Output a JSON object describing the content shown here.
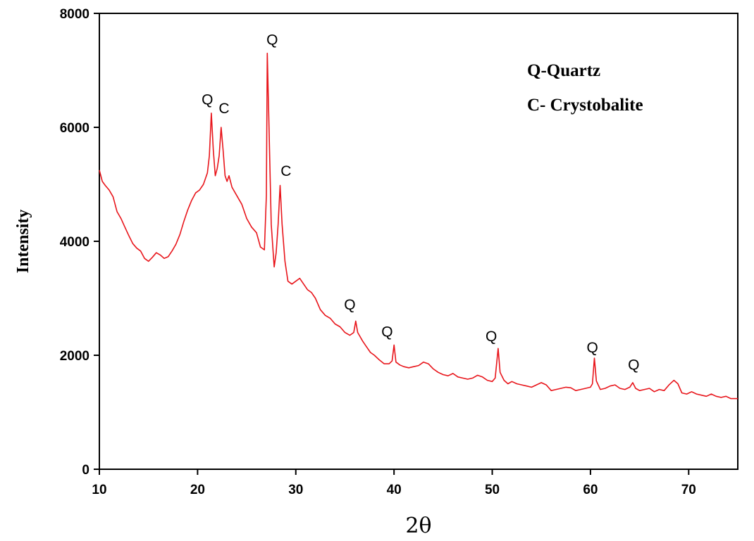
{
  "chart_data": {
    "type": "line",
    "title": "",
    "xlabel": "2θ",
    "ylabel": "Intensity",
    "xlim": [
      10,
      75
    ],
    "ylim": [
      0,
      8000
    ],
    "grid": false,
    "x_ticks": [
      10,
      20,
      30,
      40,
      50,
      60,
      70
    ],
    "y_ticks": [
      0,
      2000,
      4000,
      6000,
      8000
    ],
    "legend": {
      "placement": "top-right",
      "entries": [
        "Q-Quartz",
        "C- Crystobalite"
      ]
    },
    "series": [
      {
        "color": "#e8151b",
        "points": [
          [
            10.0,
            5250
          ],
          [
            10.3,
            5050
          ],
          [
            10.6,
            4980
          ],
          [
            11.0,
            4900
          ],
          [
            11.4,
            4780
          ],
          [
            11.8,
            4520
          ],
          [
            12.2,
            4400
          ],
          [
            12.6,
            4250
          ],
          [
            13.0,
            4100
          ],
          [
            13.4,
            3960
          ],
          [
            13.8,
            3880
          ],
          [
            14.2,
            3830
          ],
          [
            14.6,
            3700
          ],
          [
            15.0,
            3650
          ],
          [
            15.4,
            3720
          ],
          [
            15.8,
            3800
          ],
          [
            16.2,
            3760
          ],
          [
            16.6,
            3700
          ],
          [
            17.0,
            3730
          ],
          [
            17.4,
            3830
          ],
          [
            17.8,
            3950
          ],
          [
            18.2,
            4120
          ],
          [
            18.6,
            4350
          ],
          [
            19.0,
            4550
          ],
          [
            19.4,
            4720
          ],
          [
            19.8,
            4850
          ],
          [
            20.2,
            4900
          ],
          [
            20.6,
            5000
          ],
          [
            21.0,
            5200
          ],
          [
            21.2,
            5500
          ],
          [
            21.4,
            6250
          ],
          [
            21.6,
            5600
          ],
          [
            21.8,
            5150
          ],
          [
            22.0,
            5280
          ],
          [
            22.2,
            5500
          ],
          [
            22.4,
            6000
          ],
          [
            22.6,
            5600
          ],
          [
            22.8,
            5150
          ],
          [
            23.0,
            5050
          ],
          [
            23.2,
            5150
          ],
          [
            23.5,
            4950
          ],
          [
            24.0,
            4800
          ],
          [
            24.5,
            4650
          ],
          [
            25.0,
            4400
          ],
          [
            25.5,
            4250
          ],
          [
            26.0,
            4150
          ],
          [
            26.4,
            3900
          ],
          [
            26.8,
            3850
          ],
          [
            27.0,
            4800
          ],
          [
            27.1,
            7300
          ],
          [
            27.25,
            6200
          ],
          [
            27.5,
            4300
          ],
          [
            27.8,
            3550
          ],
          [
            28.0,
            3800
          ],
          [
            28.2,
            4300
          ],
          [
            28.4,
            4980
          ],
          [
            28.6,
            4300
          ],
          [
            28.9,
            3650
          ],
          [
            29.2,
            3300
          ],
          [
            29.6,
            3250
          ],
          [
            30.0,
            3300
          ],
          [
            30.4,
            3350
          ],
          [
            30.8,
            3250
          ],
          [
            31.2,
            3150
          ],
          [
            31.6,
            3100
          ],
          [
            32.0,
            3000
          ],
          [
            32.5,
            2800
          ],
          [
            33.0,
            2700
          ],
          [
            33.5,
            2650
          ],
          [
            34.0,
            2550
          ],
          [
            34.5,
            2500
          ],
          [
            35.0,
            2400
          ],
          [
            35.5,
            2350
          ],
          [
            35.9,
            2400
          ],
          [
            36.1,
            2600
          ],
          [
            36.3,
            2400
          ],
          [
            36.8,
            2250
          ],
          [
            37.2,
            2150
          ],
          [
            37.6,
            2050
          ],
          [
            38.0,
            2000
          ],
          [
            38.5,
            1920
          ],
          [
            39.0,
            1850
          ],
          [
            39.5,
            1850
          ],
          [
            39.8,
            1900
          ],
          [
            40.0,
            2180
          ],
          [
            40.2,
            1880
          ],
          [
            40.6,
            1830
          ],
          [
            41.0,
            1800
          ],
          [
            41.5,
            1780
          ],
          [
            42.0,
            1800
          ],
          [
            42.5,
            1820
          ],
          [
            43.0,
            1880
          ],
          [
            43.5,
            1850
          ],
          [
            44.0,
            1760
          ],
          [
            44.5,
            1700
          ],
          [
            45.0,
            1660
          ],
          [
            45.5,
            1640
          ],
          [
            46.0,
            1680
          ],
          [
            46.5,
            1620
          ],
          [
            47.0,
            1600
          ],
          [
            47.5,
            1580
          ],
          [
            48.0,
            1600
          ],
          [
            48.5,
            1650
          ],
          [
            49.0,
            1620
          ],
          [
            49.5,
            1560
          ],
          [
            50.0,
            1540
          ],
          [
            50.3,
            1600
          ],
          [
            50.6,
            2120
          ],
          [
            50.8,
            1700
          ],
          [
            51.2,
            1560
          ],
          [
            51.6,
            1500
          ],
          [
            52.0,
            1540
          ],
          [
            52.5,
            1500
          ],
          [
            53.0,
            1480
          ],
          [
            53.5,
            1460
          ],
          [
            54.0,
            1440
          ],
          [
            54.5,
            1480
          ],
          [
            55.0,
            1520
          ],
          [
            55.5,
            1480
          ],
          [
            56.0,
            1380
          ],
          [
            56.5,
            1400
          ],
          [
            57.0,
            1420
          ],
          [
            57.5,
            1440
          ],
          [
            58.0,
            1430
          ],
          [
            58.5,
            1380
          ],
          [
            59.0,
            1400
          ],
          [
            59.5,
            1420
          ],
          [
            60.0,
            1440
          ],
          [
            60.2,
            1500
          ],
          [
            60.4,
            1950
          ],
          [
            60.6,
            1550
          ],
          [
            61.0,
            1400
          ],
          [
            61.5,
            1420
          ],
          [
            62.0,
            1460
          ],
          [
            62.5,
            1480
          ],
          [
            63.0,
            1420
          ],
          [
            63.5,
            1400
          ],
          [
            64.0,
            1440
          ],
          [
            64.3,
            1520
          ],
          [
            64.6,
            1420
          ],
          [
            65.0,
            1380
          ],
          [
            65.5,
            1400
          ],
          [
            66.0,
            1420
          ],
          [
            66.5,
            1360
          ],
          [
            67.0,
            1400
          ],
          [
            67.5,
            1380
          ],
          [
            68.0,
            1480
          ],
          [
            68.5,
            1560
          ],
          [
            68.9,
            1500
          ],
          [
            69.3,
            1340
          ],
          [
            69.8,
            1320
          ],
          [
            70.3,
            1360
          ],
          [
            70.8,
            1320
          ],
          [
            71.3,
            1300
          ],
          [
            71.8,
            1280
          ],
          [
            72.3,
            1320
          ],
          [
            72.8,
            1280
          ],
          [
            73.3,
            1260
          ],
          [
            73.8,
            1280
          ],
          [
            74.3,
            1240
          ],
          [
            75.0,
            1240
          ]
        ]
      }
    ],
    "annotations": [
      {
        "text": "Q",
        "x": 21.0,
        "y": 6400
      },
      {
        "text": "C",
        "x": 22.7,
        "y": 6250
      },
      {
        "text": "Q",
        "x": 27.6,
        "y": 7450
      },
      {
        "text": "C",
        "x": 29.0,
        "y": 5150
      },
      {
        "text": "Q",
        "x": 35.5,
        "y": 2800
      },
      {
        "text": "Q",
        "x": 39.3,
        "y": 2330
      },
      {
        "text": "Q",
        "x": 49.9,
        "y": 2250
      },
      {
        "text": "Q",
        "x": 60.2,
        "y": 2050
      },
      {
        "text": "Q",
        "x": 64.4,
        "y": 1750
      }
    ]
  }
}
